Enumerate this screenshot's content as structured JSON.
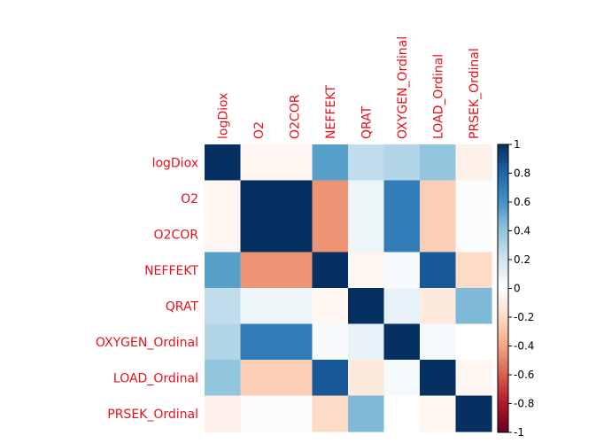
{
  "chart_data": {
    "type": "heatmap",
    "variables": [
      "logDiox",
      "O2",
      "O2COR",
      "NEFFEKT",
      "QRAT",
      "OXYGEN_Ordinal",
      "LOAD_Ordinal",
      "PRSEK_Ordinal"
    ],
    "matrix": [
      [
        1.0,
        -0.05,
        -0.05,
        0.55,
        0.25,
        0.3,
        0.4,
        -0.08
      ],
      [
        -0.05,
        1.0,
        1.0,
        -0.45,
        0.08,
        0.7,
        -0.25,
        0.02
      ],
      [
        -0.05,
        1.0,
        1.0,
        -0.45,
        0.08,
        0.7,
        -0.25,
        0.02
      ],
      [
        0.55,
        -0.45,
        -0.45,
        1.0,
        -0.05,
        0.03,
        0.85,
        -0.2
      ],
      [
        0.25,
        0.08,
        0.08,
        -0.05,
        1.0,
        0.1,
        -0.12,
        0.45
      ],
      [
        0.3,
        0.7,
        0.7,
        0.03,
        0.1,
        1.0,
        0.05,
        0.0
      ],
      [
        0.4,
        -0.25,
        -0.25,
        0.85,
        -0.12,
        0.05,
        1.0,
        -0.05
      ],
      [
        -0.08,
        0.02,
        0.02,
        -0.2,
        0.45,
        0.0,
        -0.05,
        1.0
      ]
    ],
    "colorbar": {
      "ticks": [
        "1",
        "0.8",
        "0.6",
        "0.4",
        "0.2",
        "0",
        "-0.2",
        "-0.4",
        "-0.6",
        "-0.8",
        "-1"
      ],
      "range": [
        -1,
        1
      ],
      "stops": [
        {
          "v": -1.0,
          "c": "#67001f"
        },
        {
          "v": -0.8,
          "c": "#b2182b"
        },
        {
          "v": -0.6,
          "c": "#d6604d"
        },
        {
          "v": -0.4,
          "c": "#f4a582"
        },
        {
          "v": -0.2,
          "c": "#fddbc7"
        },
        {
          "v": 0.0,
          "c": "#ffffff"
        },
        {
          "v": 0.2,
          "c": "#d1e5f0"
        },
        {
          "v": 0.4,
          "c": "#92c5de"
        },
        {
          "v": 0.6,
          "c": "#4393c3"
        },
        {
          "v": 0.8,
          "c": "#2166ac"
        },
        {
          "v": 1.0,
          "c": "#053061"
        }
      ]
    },
    "label_color": "#e8101a"
  }
}
